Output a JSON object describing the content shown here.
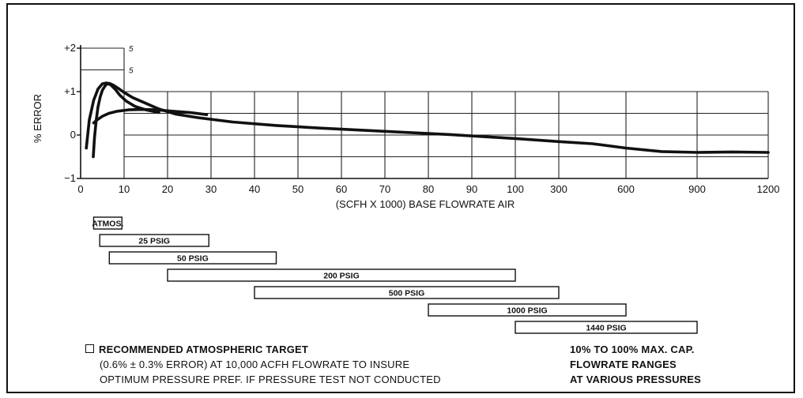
{
  "chart_data": {
    "type": "line",
    "ylabel": "% ERROR",
    "xlabel": "(SCFH X 1000) BASE FLOWRATE AIR",
    "xtick_labels": [
      "0",
      "10",
      "20",
      "30",
      "40",
      "50",
      "60",
      "70",
      "80",
      "90",
      "100",
      "300",
      "600",
      "900",
      "1200"
    ],
    "ytick_labels": [
      "+2",
      "+1",
      "0",
      "−1"
    ],
    "ylim": [
      -1,
      2
    ],
    "grid": true,
    "top_marks": [
      "5",
      "5"
    ],
    "series": [
      {
        "x": [
          2.9,
          3.2,
          3.6,
          4.0,
          4.5,
          5.0,
          5.6,
          6.0,
          6.6,
          7.5,
          8.6,
          10,
          12,
          15,
          18,
          22,
          27,
          35,
          45,
          55,
          65,
          75,
          85,
          95,
          100,
          300,
          450,
          600,
          750,
          900,
          1050,
          1200
        ],
        "y": [
          -0.5,
          -0.05,
          0.35,
          0.65,
          0.88,
          1.03,
          1.13,
          1.17,
          1.19,
          1.15,
          1.08,
          0.98,
          0.86,
          0.73,
          0.6,
          0.48,
          0.4,
          0.3,
          0.22,
          0.16,
          0.11,
          0.06,
          0.01,
          -0.05,
          -0.08,
          -0.15,
          -0.2,
          -0.3,
          -0.38,
          -0.4,
          -0.39,
          -0.4
        ]
      },
      {
        "x": [
          1.3,
          2.0,
          3.0,
          4.0,
          5.0,
          6.0,
          7.0,
          8.0,
          9.0,
          10.5,
          12.5,
          15,
          18
        ],
        "y": [
          -0.3,
          0.35,
          0.8,
          1.06,
          1.18,
          1.2,
          1.15,
          1.05,
          0.92,
          0.78,
          0.66,
          0.58,
          0.52
        ]
      },
      {
        "x": [
          3.0,
          3.8,
          5.0,
          6.5,
          8.5,
          11,
          14,
          17.5,
          21,
          25,
          29
        ],
        "y": [
          0.28,
          0.35,
          0.43,
          0.5,
          0.55,
          0.58,
          0.59,
          0.58,
          0.55,
          0.52,
          0.47
        ]
      }
    ],
    "pressure_ranges": [
      {
        "label": "ATMOS.",
        "from": 3,
        "to": 9.5
      },
      {
        "label": "25 PSIG",
        "from": 4.4,
        "to": 29.5
      },
      {
        "label": "50 PSIG",
        "from": 6.6,
        "to": 45
      },
      {
        "label": "200 PSIG",
        "from": 20,
        "to": 100
      },
      {
        "label": "500 PSIG",
        "from": 40,
        "to": 300
      },
      {
        "label": "1000 PSIG",
        "from": 80,
        "to": 600
      },
      {
        "label": "1440 PSIG",
        "from": 100,
        "to": 900
      }
    ]
  },
  "notes": {
    "left_title": "RECOMMENDED ATMOSPHERIC TARGET",
    "left_line2": "(0.6% ± 0.3% ERROR) AT 10,000 ACFH FLOWRATE TO INSURE",
    "left_line3": "OPTIMUM PRESSURE PREF. IF PRESSURE TEST NOT CONDUCTED",
    "right_line1": "10% TO 100% MAX. CAP.",
    "right_line2": "FLOWRATE RANGES",
    "right_line3": "AT VARIOUS PRESSURES"
  }
}
